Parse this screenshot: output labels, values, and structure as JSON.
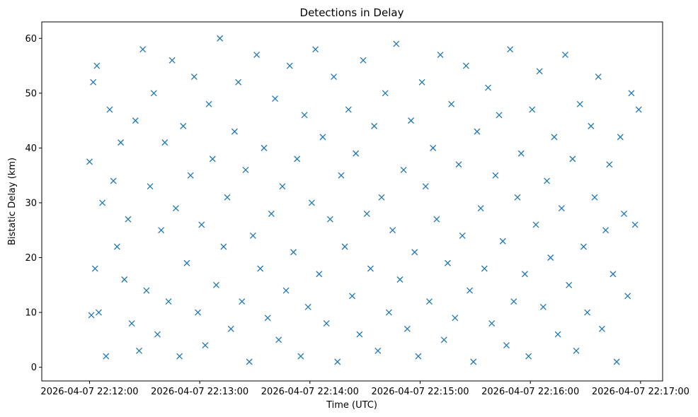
{
  "chart_data": {
    "type": "scatter",
    "title": "Detections in Delay",
    "xlabel": "Time (UTC)",
    "ylabel": "Bistatic Delay (km)",
    "marker": "x",
    "color": "#1f77b4",
    "x_tick_labels": [
      "2026-04-07 22:12:00",
      "2026-04-07 22:13:00",
      "2026-04-07 22:14:00",
      "2026-04-07 22:15:00",
      "2026-04-07 22:16:00",
      "2026-04-07 22:17:00"
    ],
    "x_tick_seconds": [
      0,
      60,
      120,
      180,
      240,
      300
    ],
    "y_ticks": [
      0,
      10,
      20,
      30,
      40,
      50,
      60
    ],
    "xlim_seconds": [
      -26,
      312
    ],
    "ylim": [
      -2.5,
      63
    ],
    "series": [
      {
        "name": "detections",
        "seconds_after_22_12_00": [
          0,
          1,
          2,
          3,
          4,
          5,
          7,
          9,
          11,
          13,
          15,
          17,
          19,
          21,
          23,
          25,
          27,
          29,
          31,
          33,
          35,
          37,
          39,
          41,
          43,
          45,
          47,
          49,
          51,
          53,
          55,
          57,
          59,
          61,
          63,
          65,
          67,
          69,
          71,
          73,
          75,
          77,
          79,
          81,
          83,
          85,
          87,
          89,
          91,
          93,
          95,
          97,
          99,
          101,
          103,
          105,
          107,
          109,
          111,
          113,
          115,
          117,
          119,
          121,
          123,
          125,
          127,
          129,
          131,
          133,
          135,
          137,
          139,
          141,
          143,
          145,
          147,
          149,
          151,
          153,
          155,
          157,
          159,
          161,
          163,
          165,
          167,
          169,
          171,
          173,
          175,
          177,
          179,
          181,
          183,
          185,
          187,
          189,
          191,
          193,
          195,
          197,
          199,
          201,
          203,
          205,
          207,
          209,
          211,
          213,
          215,
          217,
          219,
          221,
          223,
          225,
          227,
          229,
          231,
          233,
          235,
          237,
          239,
          241,
          243,
          245,
          247,
          249,
          251,
          253,
          255,
          257,
          259,
          261,
          263,
          265,
          267,
          269,
          271,
          273,
          275,
          277,
          279,
          281,
          283,
          285,
          287,
          289,
          291,
          293,
          295,
          297,
          299
        ],
        "delay_km": [
          37.5,
          9.5,
          52,
          18,
          55,
          10,
          30,
          2,
          47,
          34,
          22,
          41,
          16,
          27,
          8,
          45,
          3,
          58,
          14,
          33,
          50,
          6,
          25,
          41,
          12,
          56,
          29,
          2,
          44,
          19,
          35,
          53,
          10,
          26,
          4,
          48,
          38,
          15,
          60,
          22,
          31,
          7,
          43,
          52,
          12,
          36,
          1,
          24,
          57,
          18,
          40,
          9,
          28,
          49,
          5,
          33,
          14,
          55,
          21,
          38,
          2,
          46,
          11,
          30,
          58,
          17,
          42,
          8,
          27,
          53,
          1,
          35,
          22,
          47,
          13,
          39,
          6,
          56,
          28,
          18,
          44,
          3,
          31,
          50,
          10,
          25,
          59,
          16,
          36,
          7,
          45,
          21,
          2,
          52,
          33,
          12,
          40,
          27,
          57,
          5,
          19,
          48,
          9,
          37,
          24,
          55,
          14,
          1,
          43,
          29,
          18,
          51,
          8,
          35,
          46,
          23,
          4,
          58,
          12,
          31,
          39,
          17,
          2,
          47,
          26,
          54,
          11,
          34,
          20,
          42,
          6,
          29,
          57,
          15,
          38,
          3,
          48,
          22,
          10,
          44,
          31,
          53,
          7,
          25,
          37,
          17,
          1,
          42,
          28,
          13,
          50,
          26,
          47
        ]
      }
    ]
  }
}
